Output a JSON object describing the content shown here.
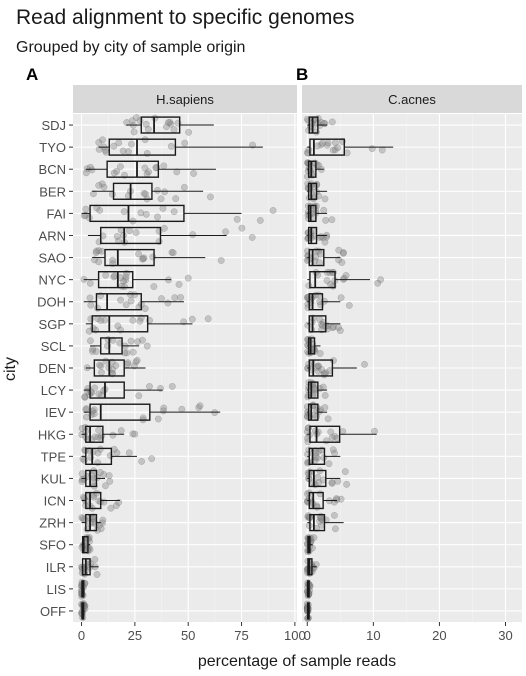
{
  "chart_data": {
    "type": "boxplot",
    "title": "Read alignment to specific genomes",
    "subtitle": "Grouped by city of sample origin",
    "xlabel": "percentage of sample reads",
    "ylabel": "city",
    "categories": [
      "SDJ",
      "TYO",
      "BCN",
      "BER",
      "FAI",
      "ARN",
      "SAO",
      "NYC",
      "DOH",
      "SGP",
      "SCL",
      "DEN",
      "LCY",
      "IEV",
      "HKG",
      "TPE",
      "KUL",
      "ICN",
      "ZRH",
      "SFO",
      "ILR",
      "LIS",
      "OFF"
    ],
    "grid": true,
    "panels": [
      {
        "tag": "A",
        "strip": "H.sapiens",
        "xlim": [
          -4,
          101
        ],
        "xticks": [
          0,
          25,
          50,
          75,
          100
        ],
        "xtick_labels": [
          "0",
          "25",
          "50",
          "75",
          "100"
        ],
        "boxes": [
          {
            "min": 21,
            "q1": 28,
            "median": 34,
            "q3": 46,
            "max": 62
          },
          {
            "min": 8,
            "q1": 13,
            "median": 26,
            "q3": 44,
            "max": 85
          },
          {
            "min": 2,
            "q1": 12,
            "median": 26,
            "q3": 36,
            "max": 63
          },
          {
            "min": 5,
            "q1": 15,
            "median": 23,
            "q3": 33,
            "max": 57
          },
          {
            "min": 0,
            "q1": 4,
            "median": 22,
            "q3": 48,
            "max": 75
          },
          {
            "min": 3,
            "q1": 9,
            "median": 20,
            "q3": 37,
            "max": 68
          },
          {
            "min": 5,
            "q1": 11,
            "median": 17,
            "q3": 34,
            "max": 58
          },
          {
            "min": 1,
            "q1": 8,
            "median": 17,
            "q3": 24,
            "max": 42
          },
          {
            "min": 1,
            "q1": 7,
            "median": 12,
            "q3": 28,
            "max": 48
          },
          {
            "min": 2,
            "q1": 5,
            "median": 13,
            "q3": 31,
            "max": 52
          },
          {
            "min": 4,
            "q1": 9,
            "median": 13,
            "q3": 19,
            "max": 27
          },
          {
            "min": 2,
            "q1": 6,
            "median": 13,
            "q3": 20,
            "max": 30
          },
          {
            "min": 1,
            "q1": 4,
            "median": 11,
            "q3": 20,
            "max": 38
          },
          {
            "min": 1,
            "q1": 4,
            "median": 9,
            "q3": 32,
            "max": 65
          },
          {
            "min": 0,
            "q1": 2,
            "median": 4,
            "q3": 10,
            "max": 20
          },
          {
            "min": 0,
            "q1": 2,
            "median": 5,
            "q3": 14,
            "max": 26
          },
          {
            "min": 0,
            "q1": 2,
            "median": 4,
            "q3": 7,
            "max": 11
          },
          {
            "min": 0,
            "q1": 2,
            "median": 4,
            "q3": 9,
            "max": 18
          },
          {
            "min": 0,
            "q1": 2,
            "median": 4,
            "q3": 7,
            "max": 9
          },
          {
            "min": 0,
            "q1": 0.5,
            "median": 1,
            "q3": 3,
            "max": 4
          },
          {
            "min": 0,
            "q1": 0.5,
            "median": 2,
            "q3": 4,
            "max": 8
          },
          {
            "min": 0,
            "q1": 0.2,
            "median": 0.5,
            "q3": 1,
            "max": 1.5
          },
          {
            "min": 0,
            "q1": 0.2,
            "median": 0.5,
            "q3": 1,
            "max": 1.5
          }
        ]
      },
      {
        "tag": "B",
        "strip": "C.acnes",
        "xlim": [
          -0.8,
          32.5
        ],
        "xticks": [
          0,
          10,
          20,
          30
        ],
        "xtick_labels": [
          "0",
          "10",
          "20",
          "30"
        ],
        "boxes": [
          {
            "min": 0,
            "q1": 0.3,
            "median": 0.8,
            "q3": 1.6,
            "max": 3
          },
          {
            "min": 0,
            "q1": 0.4,
            "median": 1.0,
            "q3": 5.6,
            "max": 13
          },
          {
            "min": 0,
            "q1": 0.2,
            "median": 0.6,
            "q3": 1.3,
            "max": 2.5
          },
          {
            "min": 0,
            "q1": 0.2,
            "median": 0.6,
            "q3": 1.4,
            "max": 3
          },
          {
            "min": 0,
            "q1": 0.2,
            "median": 0.5,
            "q3": 1.3,
            "max": 3
          },
          {
            "min": 0,
            "q1": 0.2,
            "median": 0.6,
            "q3": 1.4,
            "max": 3
          },
          {
            "min": 0,
            "q1": 0.3,
            "median": 0.8,
            "q3": 2.5,
            "max": 5
          },
          {
            "min": 0,
            "q1": 0.4,
            "median": 1.2,
            "q3": 4.2,
            "max": 9.5
          },
          {
            "min": 0,
            "q1": 0.3,
            "median": 0.8,
            "q3": 2.3,
            "max": 5
          },
          {
            "min": 0,
            "q1": 0.3,
            "median": 0.8,
            "q3": 2.8,
            "max": 5
          },
          {
            "min": 0,
            "q1": 0.2,
            "median": 0.5,
            "q3": 1.1,
            "max": 2
          },
          {
            "min": 0,
            "q1": 0.3,
            "median": 0.9,
            "q3": 3.8,
            "max": 7.5
          },
          {
            "min": 0,
            "q1": 0.2,
            "median": 0.6,
            "q3": 1.6,
            "max": 3
          },
          {
            "min": 0,
            "q1": 0.2,
            "median": 0.6,
            "q3": 1.6,
            "max": 3
          },
          {
            "min": 0,
            "q1": 0.4,
            "median": 1.4,
            "q3": 4.9,
            "max": 10.5
          },
          {
            "min": 0,
            "q1": 0.3,
            "median": 0.8,
            "q3": 2.6,
            "max": 5
          },
          {
            "min": 0,
            "q1": 0.3,
            "median": 1.0,
            "q3": 2.8,
            "max": 5
          },
          {
            "min": 0,
            "q1": 0.3,
            "median": 0.9,
            "q3": 2.4,
            "max": 4.5
          },
          {
            "min": 0,
            "q1": 0.4,
            "median": 1.0,
            "q3": 2.6,
            "max": 5.5
          },
          {
            "min": 0,
            "q1": 0.1,
            "median": 0.2,
            "q3": 0.4,
            "max": 0.8
          },
          {
            "min": 0,
            "q1": 0.1,
            "median": 0.3,
            "q3": 0.7,
            "max": 1.4
          },
          {
            "min": 0,
            "q1": 0.05,
            "median": 0.1,
            "q3": 0.2,
            "max": 0.4
          },
          {
            "min": 0,
            "q1": 0.05,
            "median": 0.1,
            "q3": 0.2,
            "max": 0.4
          }
        ]
      }
    ],
    "colors": {
      "panel_bg": "#ebebeb",
      "strip_bg": "#d9d9d9",
      "grid_major": "#ffffff",
      "grid_minor": "#f4f4f4",
      "point": "#888888",
      "box_line": "#1a1a1a",
      "text": "#1a1a1a",
      "tick_text": "#4d4d4d"
    }
  }
}
